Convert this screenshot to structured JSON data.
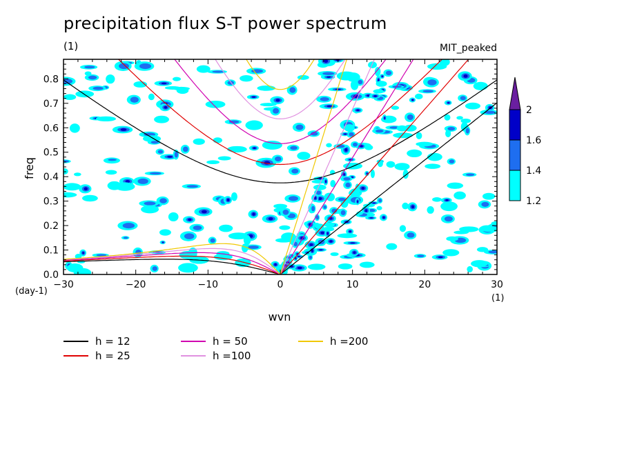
{
  "title": "precipitation flux S-T power spectrum",
  "subtitle": "(1)",
  "run_label": "MIT_peaked",
  "y_unit": "(day-1)",
  "x_unit": "(1)",
  "chart_data": {
    "type": "heatmap",
    "xlabel": "wvn",
    "ylabel": "freq",
    "xlim": [
      -30,
      30
    ],
    "ylim": [
      0,
      0.88
    ],
    "x_ticks": [
      -30,
      -20,
      -10,
      0,
      10,
      20,
      30
    ],
    "x_tick_labels": [
      "−30",
      "−20",
      "−10",
      "0",
      "10",
      "20",
      "30"
    ],
    "y_ticks": [
      0,
      0.1,
      0.2,
      0.3,
      0.4,
      0.5,
      0.6,
      0.7,
      0.8
    ],
    "y_tick_labels": [
      "0.0",
      "0.1",
      "0.2",
      "0.3",
      "0.4",
      "0.5",
      "0.6",
      "0.7",
      "0.8"
    ],
    "colorbar": {
      "levels": [
        1.2,
        1.4,
        1.6,
        2
      ],
      "labels": [
        "1.2",
        "1.4",
        "1.6",
        "2"
      ],
      "colors": [
        "#00ffff",
        "#1e6ef0",
        "#0000c8",
        "#6a1fa0"
      ]
    },
    "dispersion_curves": [
      {
        "name": "h = 12",
        "h": 12,
        "color": "#000000"
      },
      {
        "name": "h = 25",
        "h": 25,
        "color": "#e00000"
      },
      {
        "name": "h = 50",
        "h": 50,
        "color": "#d000b0"
      },
      {
        "name": "h =100",
        "h": 100,
        "color": "#e090e0"
      },
      {
        "name": "h =200",
        "h": 200,
        "color": "#f0c800"
      }
    ],
    "legend_placement": "bottom",
    "grid": false
  }
}
